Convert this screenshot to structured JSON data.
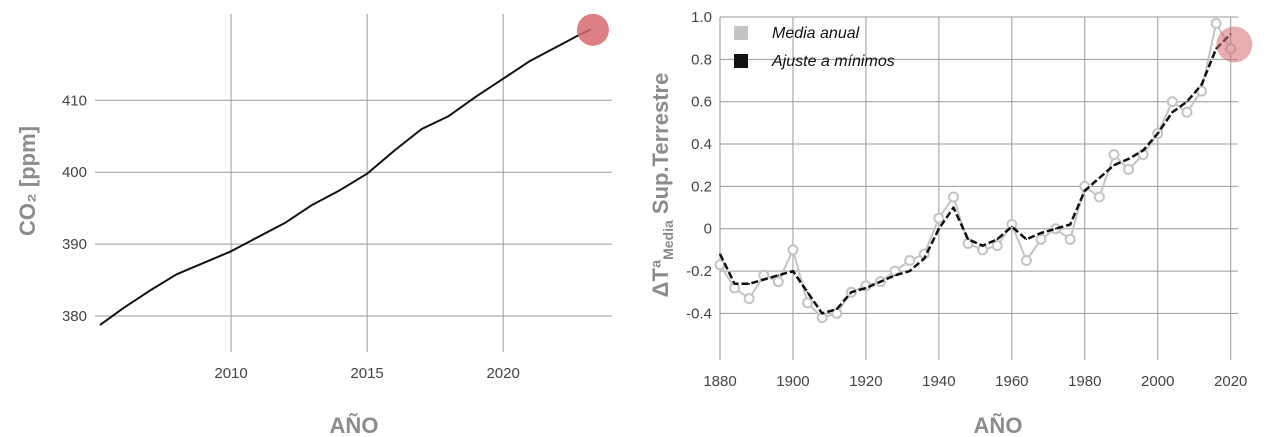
{
  "colors": {
    "grid": "#9a9a9a",
    "co2_line": "#111111",
    "annual_mean": "#c4c4c4",
    "fit": "#111111",
    "highlight": "#d66a6f"
  },
  "chart_data": [
    {
      "type": "line",
      "xlabel": "AÑO",
      "ylabel": "CO₂ [ppm]",
      "xlim": [
        2005.0,
        2024.0
      ],
      "ylim": [
        375.0,
        422.0
      ],
      "x_ticks": [
        {
          "value": 2010,
          "label": "2010"
        },
        {
          "value": 2015,
          "label": "2015"
        },
        {
          "value": 2020,
          "label": "2020"
        }
      ],
      "y_ticks": [
        {
          "value": 380,
          "label": "380"
        },
        {
          "value": 390,
          "label": "390"
        },
        {
          "value": 400,
          "label": "400"
        },
        {
          "value": 410,
          "label": "410"
        }
      ],
      "grid": true,
      "series": [
        {
          "x": [
            2005.2,
            2006.0,
            2007.0,
            2008.0,
            2009.0,
            2010.0,
            2011.0,
            2012.0,
            2013.0,
            2014.0,
            2015.0,
            2016.0,
            2017.0,
            2018.0,
            2019.0,
            2020.0,
            2021.0,
            2022.0,
            2022.9,
            2023.2
          ],
          "y": [
            378.8,
            381.0,
            383.5,
            385.8,
            387.4,
            389.0,
            391.0,
            393.0,
            395.5,
            397.5,
            399.8,
            403.0,
            406.0,
            407.8,
            410.5,
            413.0,
            415.5,
            417.5,
            419.3,
            419.8
          ]
        }
      ],
      "highlight": {
        "x": 2023.3,
        "y": 419.8
      }
    },
    {
      "type": "line",
      "xlabel": "AÑO",
      "ylabel": "ΔTª",
      "ylabel_sub": "Media",
      "ylabel_rest": " Sup.Terrestre",
      "xlim": [
        1880,
        2022
      ],
      "ylim": [
        -0.62,
        1.0
      ],
      "x_ticks": [
        {
          "value": 1880,
          "label": "1880"
        },
        {
          "value": 1900,
          "label": "1900"
        },
        {
          "value": 1920,
          "label": "1920"
        },
        {
          "value": 1940,
          "label": "1940"
        },
        {
          "value": 1960,
          "label": "1960"
        },
        {
          "value": 1980,
          "label": "1980"
        },
        {
          "value": 2000,
          "label": "2000"
        },
        {
          "value": 2020,
          "label": "2020"
        }
      ],
      "y_ticks": [
        {
          "value": -0.4,
          "label": "-0.4"
        },
        {
          "value": -0.2,
          "label": "-0.2"
        },
        {
          "value": 0.0,
          "label": "0"
        },
        {
          "value": 0.2,
          "label": "0.2"
        },
        {
          "value": 0.4,
          "label": "0.4"
        },
        {
          "value": 0.6,
          "label": "0.6"
        },
        {
          "value": 0.8,
          "label": "0.8"
        },
        {
          "value": 1.0,
          "label": "1.0"
        }
      ],
      "grid": true,
      "legend": {
        "position": "top-left",
        "entries": [
          {
            "label": "Media anual",
            "color": "#c4c4c4"
          },
          {
            "label": "Ajuste a mínimos",
            "color": "#111111"
          }
        ]
      },
      "series": [
        {
          "name": "Media anual",
          "x": [
            1880,
            1884,
            1888,
            1892,
            1896,
            1900,
            1904,
            1908,
            1912,
            1916,
            1920,
            1924,
            1928,
            1932,
            1936,
            1940,
            1944,
            1948,
            1952,
            1956,
            1960,
            1964,
            1968,
            1972,
            1976,
            1980,
            1984,
            1988,
            1992,
            1996,
            2000,
            2004,
            2008,
            2012,
            2016,
            2020
          ],
          "y": [
            -0.17,
            -0.28,
            -0.33,
            -0.22,
            -0.25,
            -0.1,
            -0.35,
            -0.42,
            -0.4,
            -0.3,
            -0.27,
            -0.25,
            -0.2,
            -0.15,
            -0.12,
            0.05,
            0.15,
            -0.07,
            -0.1,
            -0.08,
            0.02,
            -0.15,
            -0.05,
            0.0,
            -0.05,
            0.2,
            0.15,
            0.35,
            0.28,
            0.35,
            0.45,
            0.6,
            0.55,
            0.65,
            0.97,
            0.85
          ]
        },
        {
          "name": "Ajuste a mínimos",
          "x": [
            1880,
            1884,
            1888,
            1892,
            1896,
            1900,
            1904,
            1908,
            1912,
            1916,
            1920,
            1924,
            1928,
            1932,
            1936,
            1940,
            1944,
            1948,
            1952,
            1956,
            1960,
            1964,
            1968,
            1972,
            1976,
            1980,
            1984,
            1988,
            1992,
            1996,
            2000,
            2004,
            2008,
            2012,
            2016,
            2020
          ],
          "y": [
            -0.12,
            -0.26,
            -0.26,
            -0.24,
            -0.22,
            -0.2,
            -0.3,
            -0.4,
            -0.38,
            -0.3,
            -0.28,
            -0.25,
            -0.22,
            -0.2,
            -0.14,
            0.0,
            0.1,
            -0.05,
            -0.08,
            -0.05,
            0.01,
            -0.05,
            -0.02,
            0.0,
            0.02,
            0.18,
            0.24,
            0.3,
            0.33,
            0.37,
            0.45,
            0.55,
            0.6,
            0.68,
            0.85,
            0.92
          ]
        }
      ],
      "highlight": {
        "x": 2021,
        "y": 0.87
      }
    }
  ]
}
